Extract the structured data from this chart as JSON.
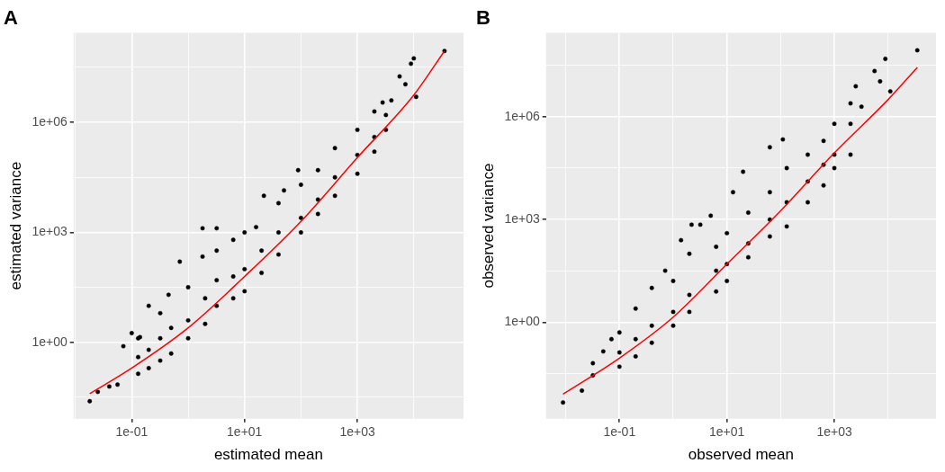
{
  "chart_data": [
    {
      "type": "scatter",
      "title": "A",
      "xlabel": "estimated mean",
      "ylabel": "estimated variance",
      "log": "xy",
      "grid": true,
      "xlim": [
        0.0093,
        76000
      ],
      "ylim": [
        0.0083,
        280000000
      ],
      "xticks": [
        {
          "value": 0.01,
          "label": null
        },
        {
          "value": 0.1,
          "label": "1e-01"
        },
        {
          "value": 1,
          "label": null
        },
        {
          "value": 10,
          "label": "1e+01"
        },
        {
          "value": 100,
          "label": null
        },
        {
          "value": 1000,
          "label": "1e+03"
        },
        {
          "value": 10000,
          "label": null
        }
      ],
      "yticks": [
        {
          "value": 0.032,
          "label": null
        },
        {
          "value": 1,
          "label": "1e+00"
        },
        {
          "value": 32,
          "label": null
        },
        {
          "value": 1000,
          "label": "1e+03"
        },
        {
          "value": 32000,
          "label": null
        },
        {
          "value": 1000000,
          "label": "1e+06"
        },
        {
          "value": 32000000,
          "label": null
        }
      ],
      "series": [
        {
          "type": "scatter",
          "marker": "circle",
          "color": "#000000",
          "x": [
            0.018,
            0.025,
            0.04,
            0.056,
            0.071,
            0.1,
            0.14,
            0.13,
            0.13,
            0.13,
            0.2,
            0.2,
            0.2,
            0.32,
            0.32,
            0.32,
            0.5,
            0.5,
            0.45,
            1,
            1,
            1,
            0.71,
            2,
            2,
            1.8,
            1.8,
            3.2,
            3.2,
            3.2,
            3.2,
            6.3,
            6.3,
            6.3,
            10,
            10,
            10,
            16,
            22,
            20,
            20,
            40,
            40,
            40,
            50,
            89,
            100,
            100,
            100,
            200,
            200,
            200,
            400,
            400,
            400,
            1000,
            1000,
            1000,
            2000,
            2000,
            2000,
            2800,
            3200,
            3200,
            4000,
            7100,
            5600,
            11000,
            8900,
            10000,
            35000
          ],
          "values": [
            0.025,
            0.045,
            0.063,
            0.071,
            0.79,
            1.8,
            1.4,
            0.14,
            0.4,
            1.3,
            0.2,
            0.63,
            10,
            0.32,
            1.3,
            6.3,
            0.5,
            2.5,
            20,
            1.3,
            4,
            32,
            160,
            3.2,
            16,
            220,
            1300,
            1300,
            10,
            50,
            320,
            16,
            63,
            630,
            25,
            100,
            1000,
            1400,
            10000,
            79,
            320,
            250,
            1000,
            6300,
            14000,
            50000,
            1000,
            2500,
            20000,
            3200,
            7900,
            50000,
            10000,
            32000,
            200000,
            40000,
            130000,
            630000,
            160000,
            400000,
            2000000,
            3500000,
            630000,
            1600000,
            4000000,
            11000000,
            18000000,
            5000000,
            40000000,
            56000000,
            89000000
          ]
        },
        {
          "type": "line",
          "marker": "none",
          "color": "#ff0000",
          "x": [
            0.018,
            0.1,
            1,
            10,
            100,
            1000,
            10000,
            35000
          ],
          "values": [
            0.04,
            0.2,
            2.5,
            63,
            2000,
            110000,
            5600000,
            89000000
          ]
        }
      ]
    },
    {
      "type": "scatter",
      "title": "B",
      "xlabel": "observed mean",
      "ylabel": "observed variance",
      "log": "xy",
      "grid": true,
      "xlim": [
        0.0043,
        78000
      ],
      "ylim": [
        0.0015,
        290000000
      ],
      "xticks": [
        {
          "value": 0.01,
          "label": null
        },
        {
          "value": 0.1,
          "label": "1e-01"
        },
        {
          "value": 1,
          "label": null
        },
        {
          "value": 10,
          "label": "1e+01"
        },
        {
          "value": 100,
          "label": null
        },
        {
          "value": 1000,
          "label": "1e+03"
        },
        {
          "value": 10000,
          "label": null
        }
      ],
      "yticks": [
        {
          "value": 0.032,
          "label": null
        },
        {
          "value": 1,
          "label": "1e+00"
        },
        {
          "value": 32,
          "label": null
        },
        {
          "value": 1000,
          "label": "1e+03"
        },
        {
          "value": 32000,
          "label": null
        },
        {
          "value": 1000000,
          "label": "1e+06"
        },
        {
          "value": 32000000,
          "label": null
        }
      ],
      "series": [
        {
          "type": "scatter",
          "marker": "circle",
          "color": "#000000",
          "x": [
            0.0089,
            0.02,
            0.05,
            0.071,
            0.032,
            0.032,
            0.1,
            0.1,
            0.1,
            0.2,
            0.2,
            0.2,
            0.4,
            0.4,
            0.4,
            1,
            1,
            1,
            0.71,
            2,
            2,
            2,
            2.2,
            3.2,
            1.4,
            5,
            6.3,
            6.3,
            6.3,
            10,
            10,
            10,
            13,
            20,
            25,
            25,
            25,
            63,
            63,
            63,
            63,
            110,
            130,
            130,
            130,
            320,
            320,
            320,
            630,
            630,
            630,
            1000,
            1000,
            1000,
            2000,
            2000,
            2000,
            2500,
            3200,
            5600,
            7100,
            11000,
            8900,
            35000
          ],
          "values": [
            0.0045,
            0.01,
            0.14,
            0.32,
            0.028,
            0.063,
            0.05,
            0.13,
            0.5,
            0.1,
            0.32,
            2.5,
            0.25,
            0.79,
            10,
            0.79,
            2,
            16,
            32,
            2,
            6.3,
            100,
            710,
            710,
            250,
            1300,
            7.9,
            32,
            160,
            16,
            50,
            400,
            6300,
            25000,
            79,
            200,
            1600,
            320,
            1000,
            6300,
            130000,
            220000,
            630,
            3200,
            32000,
            3200,
            13000,
            79000,
            10000,
            40000,
            200000,
            32000,
            79000,
            630000,
            79000,
            630000,
            2500000,
            7900000,
            2000000,
            22000000,
            11000000,
            5600000,
            50000000,
            89000000
          ]
        },
        {
          "type": "line",
          "marker": "none",
          "color": "#ff0000",
          "x": [
            0.0089,
            0.1,
            1,
            10,
            100,
            1000,
            10000,
            35000
          ],
          "values": [
            0.0079,
            0.089,
            1.4,
            50,
            1800,
            89000,
            3200000,
            28000000
          ]
        }
      ]
    }
  ]
}
